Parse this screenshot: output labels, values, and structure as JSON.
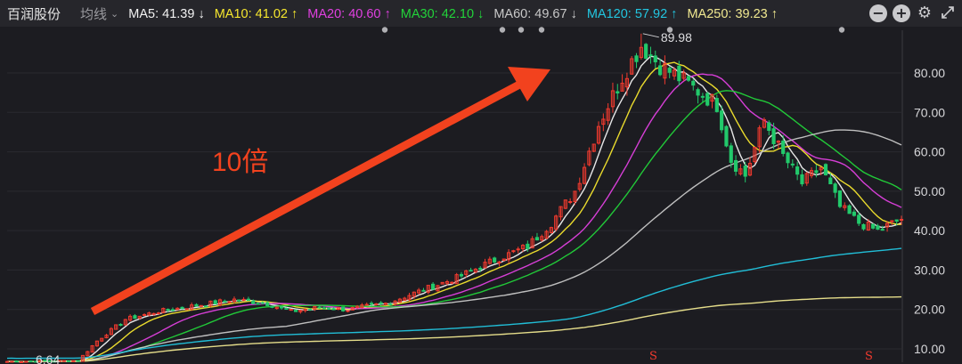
{
  "header": {
    "stock_name": "百润股份",
    "view_mode": "均线",
    "view_caret": "⌄",
    "ma_indicators": [
      {
        "label": "MA5",
        "value": "41.39",
        "dir": "↓",
        "color": "#f2f2f2"
      },
      {
        "label": "MA10",
        "value": "41.02",
        "dir": "↑",
        "color": "#f5e62e"
      },
      {
        "label": "MA20",
        "value": "40.60",
        "dir": "↑",
        "color": "#e040e0"
      },
      {
        "label": "MA30",
        "value": "42.10",
        "dir": "↓",
        "color": "#22d33a"
      },
      {
        "label": "MA60",
        "value": "49.67",
        "dir": "↓",
        "color": "#c8c8c8"
      },
      {
        "label": "MA120",
        "value": "57.92",
        "dir": "↑",
        "color": "#22c6e0"
      },
      {
        "label": "MA250",
        "value": "39.23",
        "dir": "↑",
        "color": "#f0e890"
      }
    ],
    "controls": [
      {
        "name": "zoom-out-icon",
        "glyph": "−"
      },
      {
        "name": "zoom-in-icon",
        "glyph": "+"
      },
      {
        "name": "gear-icon",
        "glyph": "⚙"
      },
      {
        "name": "expand-icon",
        "glyph": "⤢"
      }
    ]
  },
  "colors": {
    "up_candle": "#f23a2e",
    "down_candle": "#22c96b",
    "arrow": "#f2421e",
    "background": "#1c1c21"
  },
  "chart_data": {
    "type": "candlestick",
    "y_ticks": [
      "80.00",
      "70.00",
      "60.00",
      "50.00",
      "40.00",
      "30.00",
      "20.00",
      "10.00"
    ],
    "ylim": [
      6,
      91
    ],
    "period_count": 190,
    "max_label": "89.98",
    "max_value": 89.98,
    "min_label": "6.64",
    "min_value": 6.64,
    "annotation_text": "10倍",
    "markers": [
      "S",
      "S"
    ],
    "price_path": [
      {
        "i": 0,
        "v": 6.8
      },
      {
        "i": 15,
        "v": 7.0
      },
      {
        "i": 19,
        "v": 12
      },
      {
        "i": 25,
        "v": 17.5
      },
      {
        "i": 32,
        "v": 19.5
      },
      {
        "i": 40,
        "v": 21
      },
      {
        "i": 48,
        "v": 22.5
      },
      {
        "i": 55,
        "v": 21.5
      },
      {
        "i": 60,
        "v": 19.5
      },
      {
        "i": 66,
        "v": 20.5
      },
      {
        "i": 72,
        "v": 20
      },
      {
        "i": 80,
        "v": 21.5
      },
      {
        "i": 88,
        "v": 25
      },
      {
        "i": 95,
        "v": 28
      },
      {
        "i": 102,
        "v": 32
      },
      {
        "i": 110,
        "v": 36
      },
      {
        "i": 115,
        "v": 42
      },
      {
        "i": 120,
        "v": 50
      },
      {
        "i": 125,
        "v": 67
      },
      {
        "i": 130,
        "v": 79
      },
      {
        "i": 134,
        "v": 87
      },
      {
        "i": 138,
        "v": 82
      },
      {
        "i": 143,
        "v": 78
      },
      {
        "i": 150,
        "v": 72
      },
      {
        "i": 153,
        "v": 58
      },
      {
        "i": 156,
        "v": 54
      },
      {
        "i": 160,
        "v": 68
      },
      {
        "i": 164,
        "v": 59
      },
      {
        "i": 168,
        "v": 52
      },
      {
        "i": 172,
        "v": 56
      },
      {
        "i": 176,
        "v": 46
      },
      {
        "i": 180,
        "v": 42
      },
      {
        "i": 184,
        "v": 40
      },
      {
        "i": 189,
        "v": 43
      }
    ]
  }
}
